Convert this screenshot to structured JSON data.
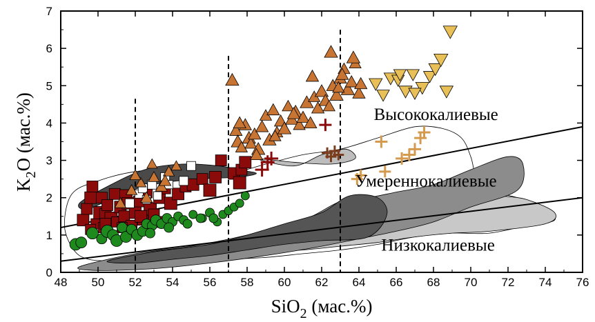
{
  "chart_data": {
    "type": "scatter",
    "title": "",
    "xlabel_main": "SiO",
    "xlabel_sub": "2",
    "xlabel_unit": " (мас.%)",
    "ylabel_main": "K",
    "ylabel_sub": "2",
    "ylabel_unit": "O (мас.%)",
    "xlim": [
      48,
      76
    ],
    "ylim": [
      0,
      7
    ],
    "xticks": [
      48,
      50,
      52,
      54,
      56,
      58,
      60,
      62,
      64,
      66,
      68,
      70,
      72,
      74,
      76
    ],
    "yticks": [
      0,
      1,
      2,
      3,
      4,
      5,
      6,
      7
    ],
    "grid": false,
    "legend": "none",
    "annotations": [
      {
        "text": "Высококалиевые",
        "x": 64.8,
        "y": 4.08
      },
      {
        "text": "Умереннокалиевые",
        "x": 63.8,
        "y": 2.3
      },
      {
        "text": "Низкокалиевые",
        "x": 65.2,
        "y": 0.58
      }
    ],
    "boundary_lines": [
      {
        "name": "high-medium",
        "x": [
          48,
          76
        ],
        "y": [
          1.2,
          3.9
        ]
      },
      {
        "name": "medium-low",
        "x": [
          48,
          76
        ],
        "y": [
          0.3,
          2.0
        ]
      }
    ],
    "vertical_dashed": [
      52,
      57,
      63
    ],
    "fields": [
      {
        "name": "outline-field",
        "color": "#ffffff",
        "x": [
          48.2,
          48.6,
          50,
          52,
          54,
          56,
          57.5,
          59,
          61,
          63,
          65,
          67,
          68.5,
          69.5,
          70,
          70.3,
          71,
          72.5,
          74,
          74.5,
          73,
          71,
          69,
          67,
          65,
          63,
          61,
          59,
          57,
          55,
          53,
          51,
          49.5,
          48.7
        ],
        "y": [
          1.25,
          2.1,
          2.45,
          2.7,
          2.75,
          2.65,
          2.7,
          2.9,
          3.15,
          3.3,
          3.6,
          3.9,
          3.85,
          3.6,
          3.1,
          2.55,
          2.2,
          2.0,
          1.75,
          1.4,
          1.25,
          1.05,
          1.05,
          0.95,
          0.75,
          0.6,
          0.5,
          0.4,
          0.35,
          0.3,
          0.25,
          0.3,
          0.35,
          0.6
        ]
      },
      {
        "name": "light-grey-field",
        "color": "#c8c8c8",
        "x": [
          56,
          59,
          62,
          65,
          68,
          70,
          71.5,
          73,
          74.5,
          74,
          71,
          69,
          67,
          65,
          63,
          61,
          59,
          57
        ],
        "y": [
          0.7,
          1.0,
          1.4,
          1.8,
          2.05,
          2.1,
          2.05,
          1.95,
          1.6,
          1.3,
          1.1,
          1.05,
          0.95,
          0.8,
          0.7,
          0.6,
          0.55,
          0.6
        ]
      },
      {
        "name": "mid-grey-field",
        "color": "#8c8c8c",
        "x": [
          49,
          52,
          55,
          58,
          61,
          63,
          64.5,
          66,
          68,
          70,
          72,
          72.8,
          72.5,
          70,
          68,
          66,
          64,
          62,
          59,
          56,
          53,
          50
        ],
        "y": [
          0.15,
          0.5,
          0.7,
          1.0,
          1.4,
          1.9,
          2.0,
          2.15,
          2.35,
          2.75,
          3.1,
          2.9,
          2.2,
          1.75,
          1.35,
          1.1,
          0.9,
          0.7,
          0.45,
          0.25,
          0.1,
          0.05
        ]
      },
      {
        "name": "dark-grey-field",
        "color": "#555555",
        "x": [
          50.5,
          53,
          56,
          58,
          60,
          62,
          63.5,
          65,
          65.5,
          64.5,
          62,
          60,
          58,
          56,
          54,
          52
        ],
        "y": [
          0.3,
          0.55,
          0.75,
          1.0,
          1.3,
          1.6,
          2.05,
          2.0,
          1.55,
          0.95,
          0.85,
          0.75,
          0.6,
          0.45,
          0.35,
          0.25
        ]
      },
      {
        "name": "upper-dark-band",
        "color": "#4a4a4a",
        "x": [
          49,
          50.5,
          52.5,
          54.5,
          56.5,
          57.5,
          58.5,
          57.5,
          55.5,
          53.5,
          51.5,
          49.5
        ],
        "y": [
          1.85,
          2.3,
          2.75,
          2.9,
          2.85,
          2.75,
          2.65,
          2.55,
          2.5,
          2.4,
          2.15,
          1.7
        ]
      },
      {
        "name": "high-k-sliver",
        "color": "#bdbdbd",
        "x": [
          58.5,
          60.5,
          62,
          63.3,
          63.8,
          62.5,
          60.5
        ],
        "y": [
          3.05,
          2.85,
          3.15,
          3.3,
          3.05,
          2.9,
          2.95
        ]
      }
    ],
    "series": [
      {
        "marker": "square",
        "color": "#8b0a0a",
        "edge": "#000000",
        "x": [
          49.2,
          49.4,
          49.6,
          49.7,
          49.9,
          50.1,
          50.2,
          50.3,
          50.4,
          50.5,
          50.7,
          50.9,
          51.0,
          51.2,
          51.4,
          51.5,
          51.6,
          51.8,
          52.0,
          52.2,
          52.4,
          52.6,
          52.8,
          53.0,
          53.3,
          53.6,
          53.9,
          54.3,
          54.7,
          55.1,
          55.6,
          56.0,
          56.3,
          56.6,
          57.3,
          57.6,
          57.7,
          57.9,
          49.6,
          50.4,
          51.3,
          52.3,
          53.2
        ],
        "y": [
          1.4,
          1.7,
          2.0,
          2.3,
          1.3,
          1.6,
          2.0,
          1.2,
          1.55,
          1.8,
          1.45,
          2.1,
          1.35,
          1.75,
          1.5,
          2.05,
          1.85,
          1.25,
          1.6,
          1.9,
          1.4,
          2.15,
          1.7,
          1.55,
          2.0,
          2.25,
          1.85,
          2.1,
          2.3,
          2.35,
          2.5,
          2.2,
          2.55,
          3.0,
          2.65,
          2.4,
          2.75,
          2.95,
          1.15,
          1.3,
          1.2,
          1.5,
          1.35
        ],
        "size": [
          17,
          16,
          17,
          16,
          15,
          18,
          16,
          15,
          17,
          16,
          18,
          16,
          15,
          17,
          16,
          18,
          17,
          16,
          17,
          16,
          15,
          17,
          18,
          16,
          17,
          16,
          18,
          17,
          16,
          17,
          16,
          18,
          17,
          16,
          17,
          18,
          16,
          17,
          15,
          16,
          15,
          17,
          16
        ]
      },
      {
        "marker": "square",
        "color": "#ffffff",
        "edge": "#000000",
        "x": [
          51.7,
          52.2,
          52.4,
          52.9,
          53.2,
          53.6,
          54.6,
          55.0,
          53.8,
          52.6
        ],
        "y": [
          1.85,
          2.1,
          2.25,
          2.35,
          2.05,
          2.55,
          2.45,
          2.85,
          2.35,
          1.95
        ],
        "size": [
          13,
          12,
          13,
          13,
          12,
          13,
          13,
          13,
          12,
          12
        ]
      },
      {
        "marker": "circle",
        "color": "#1e8a1e",
        "edge": "#000000",
        "x": [
          48.8,
          49.1,
          49.7,
          50.2,
          50.5,
          50.8,
          51.0,
          51.3,
          51.5,
          51.8,
          52.1,
          52.4,
          52.6,
          52.9,
          53.1,
          53.4,
          53.7,
          54.0,
          54.3,
          54.6,
          55.1,
          55.6,
          56.0,
          56.4,
          56.7,
          57.0,
          57.3,
          57.6,
          57.9,
          56.2,
          55.5,
          54.8,
          53.8,
          52.8
        ],
        "y": [
          0.75,
          0.8,
          1.05,
          0.9,
          1.1,
          1.0,
          0.85,
          1.2,
          0.95,
          1.15,
          1.0,
          1.1,
          1.3,
          1.25,
          1.4,
          1.3,
          1.45,
          1.35,
          1.5,
          1.4,
          1.55,
          1.45,
          1.6,
          1.35,
          1.55,
          1.65,
          1.75,
          1.85,
          2.05,
          1.45,
          1.45,
          1.3,
          1.2,
          1.05
        ],
        "size": [
          17,
          16,
          17,
          15,
          18,
          16,
          17,
          15,
          16,
          15,
          16,
          15,
          14,
          14,
          15,
          14,
          14,
          13,
          13,
          13,
          12,
          12,
          13,
          12,
          12,
          12,
          12,
          12,
          12,
          13,
          13,
          13,
          14,
          14
        ]
      },
      {
        "marker": "triangle-up",
        "color": "#c87533",
        "edge": "#000000",
        "x": [
          51.2,
          51.8,
          52.3,
          52.6,
          53.0,
          53.4,
          53.8,
          54.2,
          52.0,
          52.9,
          53.6,
          57.2,
          57.4,
          57.5,
          57.7,
          57.9,
          58.1,
          58.2,
          58.4,
          58.6,
          58.8,
          59.0,
          59.2,
          59.4,
          59.6,
          59.8,
          60.0,
          60.2,
          60.4,
          60.6,
          60.8,
          61.0,
          61.2,
          61.4,
          61.6,
          61.8,
          62.0,
          62.2,
          62.4,
          62.6,
          62.8,
          63.0,
          63.2,
          63.4,
          63.6,
          63.8,
          64.0,
          62.5,
          63.1,
          63.7,
          64.1,
          62.9,
          61.5,
          60.5,
          59.5,
          58.5,
          57.6
        ],
        "y": [
          1.85,
          2.2,
          2.4,
          2.0,
          2.55,
          2.3,
          2.7,
          2.85,
          2.6,
          2.9,
          2.45,
          5.15,
          3.8,
          3.5,
          3.35,
          3.95,
          3.6,
          3.45,
          3.7,
          3.3,
          3.9,
          4.2,
          3.55,
          4.35,
          3.75,
          4.05,
          3.85,
          4.45,
          4.1,
          4.3,
          3.95,
          4.15,
          4.55,
          4.0,
          4.7,
          4.4,
          4.85,
          4.6,
          4.45,
          5.0,
          4.75,
          5.2,
          5.45,
          4.9,
          5.1,
          5.6,
          4.8,
          5.9,
          5.3,
          5.75,
          5.05,
          4.95,
          5.25,
          4.25,
          3.65,
          3.15,
          4.0
        ],
        "size": [
          16,
          16,
          15,
          17,
          16,
          17,
          16,
          15,
          16,
          15,
          17,
          19,
          18,
          19,
          17,
          18,
          19,
          17,
          18,
          19,
          18,
          17,
          19,
          18,
          17,
          18,
          19,
          17,
          18,
          19,
          17,
          18,
          19,
          18,
          17,
          18,
          19,
          18,
          17,
          18,
          19,
          18,
          17,
          19,
          18,
          17,
          18,
          19,
          18,
          19,
          18,
          17,
          18,
          18,
          17,
          18,
          18
        ]
      },
      {
        "marker": "triangle-down",
        "color": "#e9bf58",
        "edge": "#000000",
        "x": [
          64.9,
          65.3,
          65.7,
          66.1,
          66.5,
          66.9,
          67.4,
          67.8,
          68.1,
          68.4,
          68.7,
          68.9,
          66.2,
          67.0
        ],
        "y": [
          5.05,
          4.75,
          5.2,
          5.15,
          4.85,
          5.3,
          4.95,
          5.25,
          5.45,
          5.7,
          4.85,
          6.45,
          5.3,
          4.8
        ],
        "size": [
          19,
          18,
          19,
          18,
          19,
          18,
          19,
          18,
          19,
          20,
          19,
          20,
          18,
          18
        ]
      },
      {
        "marker": "plus",
        "color": "#8b0a0a",
        "x": [
          58.8,
          59.1,
          59.3,
          62.2
        ],
        "y": [
          2.75,
          2.95,
          3.05,
          3.95
        ],
        "size": [
          20,
          20,
          20,
          18
        ]
      },
      {
        "marker": "plus",
        "color": "#7a3e1e",
        "x": [
          62.3,
          62.5,
          62.7,
          62.9
        ],
        "y": [
          3.2,
          3.1,
          3.25,
          3.15
        ],
        "size": [
          16,
          16,
          16,
          16
        ]
      },
      {
        "marker": "plus",
        "color": "#d49a4e",
        "x": [
          63.9,
          64.1,
          65.2,
          65.4,
          66.3,
          66.7,
          67.0,
          67.3,
          67.5
        ],
        "y": [
          2.5,
          2.6,
          3.5,
          2.7,
          3.05,
          3.15,
          3.3,
          3.6,
          3.75
        ],
        "size": [
          17,
          17,
          18,
          17,
          18,
          18,
          18,
          18,
          18
        ]
      }
    ]
  }
}
